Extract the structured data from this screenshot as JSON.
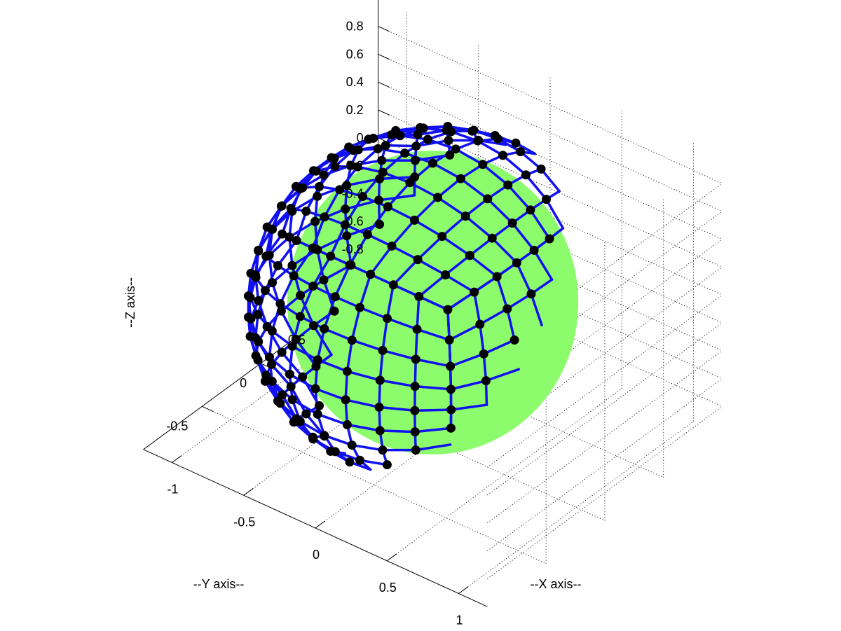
{
  "chart_data": {
    "type": "3d-surface-mesh",
    "title": "",
    "xlabel": "--X axis--",
    "ylabel": "--Y axis--",
    "zlabel": "--Z axis--",
    "xlim": [
      -1.2,
      1.2
    ],
    "ylim": [
      -1,
      1
    ],
    "zlim": [
      -1,
      1
    ],
    "x_ticks": [
      -1,
      -0.5,
      0,
      0.5,
      1
    ],
    "x_tick_labels": [
      "-1",
      "-0.5",
      "0",
      "0.5",
      "1"
    ],
    "y_ticks": [
      -0.5,
      0,
      0.5
    ],
    "y_tick_labels": [
      "-0.5",
      "0",
      "0.5"
    ],
    "z_ticks": [
      -0.8,
      -0.6,
      -0.4,
      -0.2,
      0,
      0.2,
      0.4,
      0.6,
      0.8
    ],
    "z_tick_labels": [
      "-0.8",
      "-0.6",
      "-0.4",
      "-0.2",
      "0",
      "0.2",
      "0.4",
      "0.6",
      "0.8"
    ],
    "grid": true,
    "surface": {
      "shape": "sphere",
      "radius": 1,
      "center": [
        0,
        0,
        0
      ],
      "mesh": "cube-sphere quadrilateral grid, 8 divisions per face",
      "divisions_per_face": 8
    },
    "colors": {
      "surface_fill": "#8cfb6c",
      "mesh_edges": "#1010f0",
      "vertex_markers": "#000000"
    }
  }
}
